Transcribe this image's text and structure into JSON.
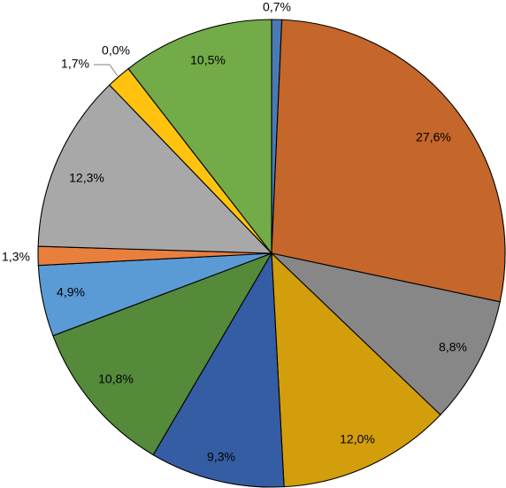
{
  "chart_data": {
    "type": "pie",
    "title": "",
    "start_angle_deg": 90,
    "direction": "clockwise",
    "legend": "none",
    "slices": [
      {
        "label": "0,7%",
        "value": 0.7,
        "color": "#4a7ab5"
      },
      {
        "label": "27,6%",
        "value": 27.6,
        "color": "#c5662a"
      },
      {
        "label": "8,8%",
        "value": 8.8,
        "color": "#878787"
      },
      {
        "label": "12,0%",
        "value": 12.0,
        "color": "#d39e0c"
      },
      {
        "label": "9,3%",
        "value": 9.3,
        "color": "#355da3"
      },
      {
        "label": "10,8%",
        "value": 10.8,
        "color": "#548a3a"
      },
      {
        "label": "4,9%",
        "value": 4.9,
        "color": "#5b9bd5"
      },
      {
        "label": "1,3%",
        "value": 1.3,
        "color": "#e87f3c"
      },
      {
        "label": "12,3%",
        "value": 12.3,
        "color": "#a8a8a8"
      },
      {
        "label": "1,7%",
        "value": 1.7,
        "color": "#ffc30f"
      },
      {
        "label": "0,0%",
        "value": 0.0,
        "color": "#4472c4"
      },
      {
        "label": "10,5%",
        "value": 10.5,
        "color": "#72ab47"
      }
    ]
  }
}
